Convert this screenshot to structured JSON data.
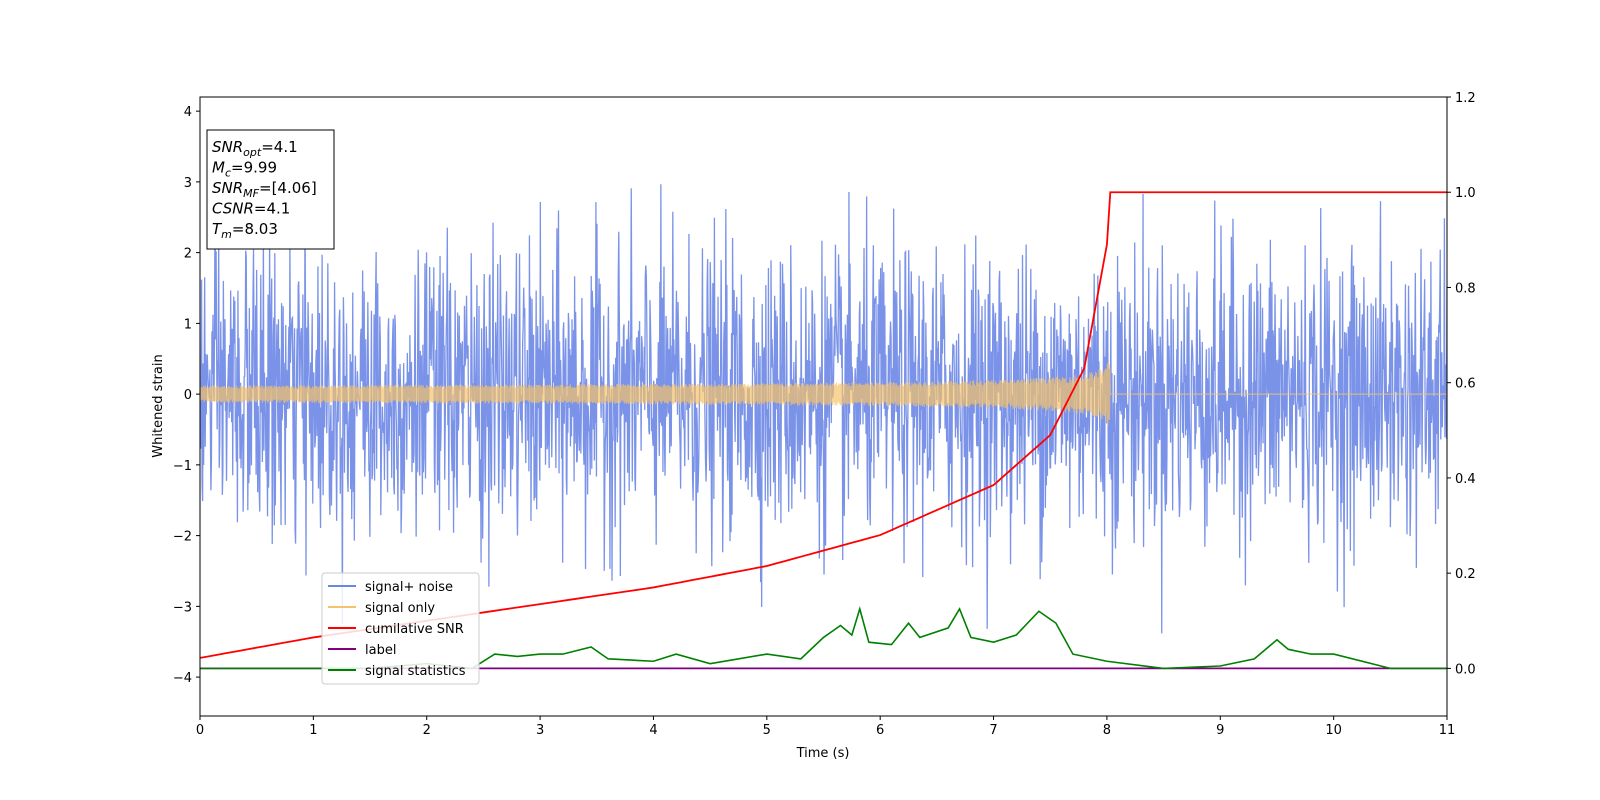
{
  "chart_data": {
    "type": "line",
    "title": "",
    "xlabel": "Time (s)",
    "ylabel": "Whitened strain",
    "y2label": "",
    "xlim": [
      0,
      11
    ],
    "ylim": [
      -4.55,
      4.2
    ],
    "y2lim": [
      -0.1,
      1.2
    ],
    "x_ticks": [
      0,
      1,
      2,
      3,
      4,
      5,
      6,
      7,
      8,
      9,
      10,
      11
    ],
    "y_ticks": [
      -4,
      -3,
      -2,
      -1,
      0,
      1,
      2,
      3,
      4
    ],
    "y2_ticks": [
      0.0,
      0.2,
      0.4,
      0.6,
      0.8,
      1.0,
      1.2
    ],
    "grid": false,
    "legend_position": "lower-left",
    "legend": [
      {
        "name": "signal+ noise",
        "color": "#6b87e6"
      },
      {
        "name": "signal only",
        "color": "#f5c26b"
      },
      {
        "name": "cumilative SNR",
        "color": "#ff0000"
      },
      {
        "name": "label",
        "color": "#800080"
      },
      {
        "name": "signal statistics",
        "color": "#008000"
      }
    ],
    "annotation_box": [
      {
        "base": "SNR",
        "sub": "opt",
        "value": "=4.1"
      },
      {
        "base": "M",
        "sub": "c",
        "value": "=9.99"
      },
      {
        "base": "SNR",
        "sub": "MF",
        "value": "=[4.06]"
      },
      {
        "base": "CSNR",
        "sub": "",
        "value": "=4.1"
      },
      {
        "base": "T",
        "sub": "m",
        "value": "=8.03"
      }
    ],
    "series": [
      {
        "name": "signal+ noise",
        "axis": "left",
        "description_values": "white noise, std 1.0, peaks to about 3.8 / -4.2",
        "x_range": [
          0,
          11
        ],
        "std": 1.0
      },
      {
        "name": "signal only",
        "axis": "left",
        "chirp_end": 8.03,
        "amplitude_at_end": 0.58,
        "x_range": [
          0,
          11
        ]
      },
      {
        "name": "cumilative SNR",
        "axis": "right",
        "x": [
          0,
          1,
          2,
          3,
          4,
          5,
          6,
          7,
          7.5,
          7.8,
          8.0,
          8.03,
          11
        ],
        "values": [
          0.022,
          0.065,
          0.1,
          0.135,
          0.17,
          0.215,
          0.28,
          0.385,
          0.49,
          0.63,
          0.89,
          1.0,
          1.0
        ]
      },
      {
        "name": "label",
        "axis": "right",
        "x": [
          0,
          11
        ],
        "values": [
          0,
          0
        ]
      },
      {
        "name": "signal statistics",
        "axis": "right",
        "x": [
          0,
          0.5,
          1,
          1.5,
          2,
          2.4,
          2.6,
          2.8,
          3.0,
          3.2,
          3.45,
          3.6,
          4.0,
          4.2,
          4.5,
          5.0,
          5.3,
          5.5,
          5.65,
          5.75,
          5.82,
          5.9,
          6.1,
          6.25,
          6.35,
          6.6,
          6.7,
          6.8,
          7.0,
          7.2,
          7.4,
          7.55,
          7.7,
          8.0,
          8.5,
          9.0,
          9.3,
          9.5,
          9.6,
          9.8,
          10.0,
          10.5,
          11
        ],
        "values": [
          0.0,
          0.0,
          0.0,
          0.0,
          0.01,
          0.0,
          0.03,
          0.025,
          0.03,
          0.03,
          0.045,
          0.02,
          0.015,
          0.03,
          0.01,
          0.03,
          0.02,
          0.065,
          0.09,
          0.07,
          0.125,
          0.055,
          0.05,
          0.095,
          0.065,
          0.085,
          0.125,
          0.065,
          0.055,
          0.07,
          0.12,
          0.095,
          0.03,
          0.015,
          0.0,
          0.005,
          0.02,
          0.06,
          0.04,
          0.03,
          0.03,
          0.0,
          0.0
        ]
      }
    ]
  }
}
